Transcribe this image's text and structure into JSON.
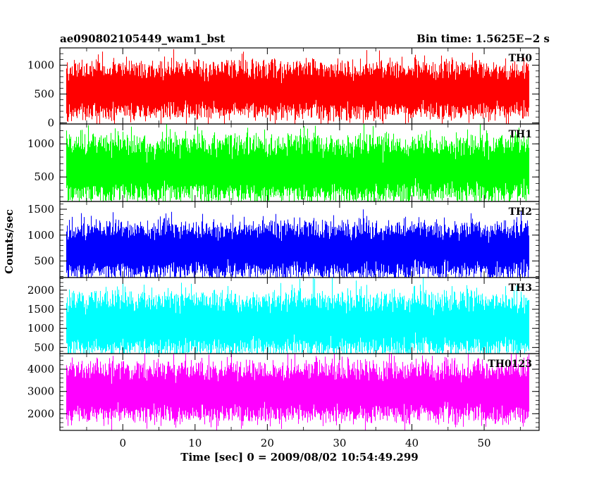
{
  "header": {
    "left_title": "ae090802105449_wam1_bst",
    "right_title": "Bin time: 1.5625E−2 s"
  },
  "chart_data": {
    "type": "line",
    "xlabel": "Time [sec] 0 = 2009/08/02 10:54:49.299",
    "ylabel": "Counts/sec",
    "xlim": [
      -8.7,
      57.6
    ],
    "x_start": -7.8,
    "x_end": 56.2,
    "bin_time": 0.015625,
    "x_ticks": [
      0,
      10,
      20,
      30,
      40,
      50
    ],
    "x_tick_labels": [
      "0",
      "10",
      "20",
      "30",
      "40",
      "50"
    ],
    "panels": [
      {
        "name": "TH0",
        "color": "#ff0000",
        "ylim": [
          -20,
          1300
        ],
        "yticks": [
          0,
          500,
          1000
        ],
        "ytick_labels": [
          "0",
          "500",
          "1000"
        ],
        "base_mean": 560,
        "noise_sd": 190
      },
      {
        "name": "TH1",
        "color": "#00ff00",
        "ylim": [
          130,
          1300
        ],
        "yticks": [
          500,
          1000
        ],
        "ytick_labels": [
          "500",
          "1000"
        ],
        "base_mean": 610,
        "noise_sd": 190
      },
      {
        "name": "TH2",
        "color": "#0000ff",
        "ylim": [
          180,
          1650
        ],
        "yticks": [
          500,
          1000,
          1500
        ],
        "ytick_labels": [
          "500",
          "1000",
          "1500"
        ],
        "base_mean": 700,
        "noise_sd": 210
      },
      {
        "name": "TH3",
        "color": "#00ffff",
        "ylim": [
          340,
          2330
        ],
        "yticks": [
          500,
          1000,
          1500,
          2000
        ],
        "ytick_labels": [
          "500",
          "1000",
          "1500",
          "2000"
        ],
        "base_mean": 1100,
        "noise_sd": 320
      },
      {
        "name": "TH0123",
        "color": "#ff00ff",
        "ylim": [
          1250,
          4700
        ],
        "yticks": [
          2000,
          3000,
          4000
        ],
        "ytick_labels": [
          "2000",
          "3000",
          "4000"
        ],
        "base_mean": 2950,
        "noise_sd": 520
      }
    ]
  }
}
